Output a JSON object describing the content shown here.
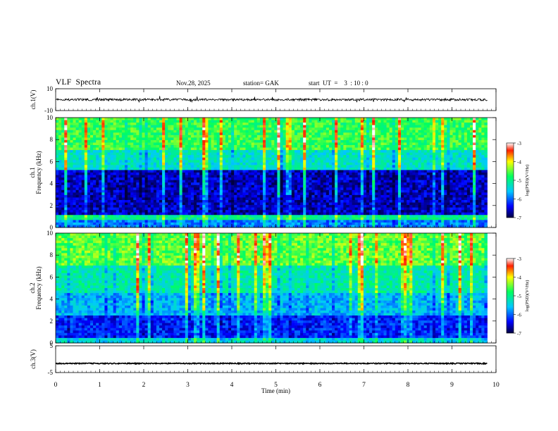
{
  "header": {
    "title": "VLF  Spectra",
    "date": "Nov.28, 2025",
    "station": "station= GAK",
    "start": "start  UT  =    3  : 10 : 0"
  },
  "chart_data": [
    {
      "type": "line",
      "name": "ch1-waveform",
      "ylabel": "ch.1(V)",
      "ylim": [
        -10,
        10
      ],
      "yticks": [
        "10",
        "-10"
      ],
      "xlim": [
        0,
        10
      ],
      "baseline": 0
    },
    {
      "type": "heatmap",
      "name": "ch1-spectrogram",
      "ylabel": "ch.1\nFrequency  (kHz)",
      "ylim": [
        0,
        10
      ],
      "yticks": [
        0,
        2,
        4,
        6,
        8,
        10
      ],
      "xlim": [
        0,
        10
      ],
      "data_end_x": 9.8,
      "colorbar": {
        "label": "log(PSD)(V²/Hz)",
        "range": [
          -7,
          -3
        ],
        "ticks": [
          "-3",
          "-4",
          "-5",
          "-6",
          "-7"
        ]
      }
    },
    {
      "type": "heatmap",
      "name": "ch2-spectrogram",
      "ylabel": "ch.2\nFrequency  (kHz)",
      "ylim": [
        0,
        10
      ],
      "yticks": [
        0,
        2,
        4,
        6,
        8,
        10
      ],
      "xlim": [
        0,
        10
      ],
      "data_end_x": 9.8,
      "colorbar": {
        "label": "log(PSD)(V²/Hz)",
        "range": [
          -7,
          -3
        ],
        "ticks": [
          "-3",
          "-4",
          "-5",
          "-6",
          "-7"
        ]
      }
    },
    {
      "type": "line",
      "name": "ch3-waveform",
      "ylabel": "ch.3(V)",
      "ylim": [
        -5,
        5
      ],
      "yticks": [
        "5",
        "-5"
      ],
      "xlim": [
        0,
        10
      ],
      "baseline": -1.6
    }
  ],
  "xaxis": {
    "label": "Time  (min)",
    "ticks": [
      "0",
      "1",
      "2",
      "3",
      "4",
      "5",
      "6",
      "7",
      "8",
      "9",
      "10"
    ]
  }
}
